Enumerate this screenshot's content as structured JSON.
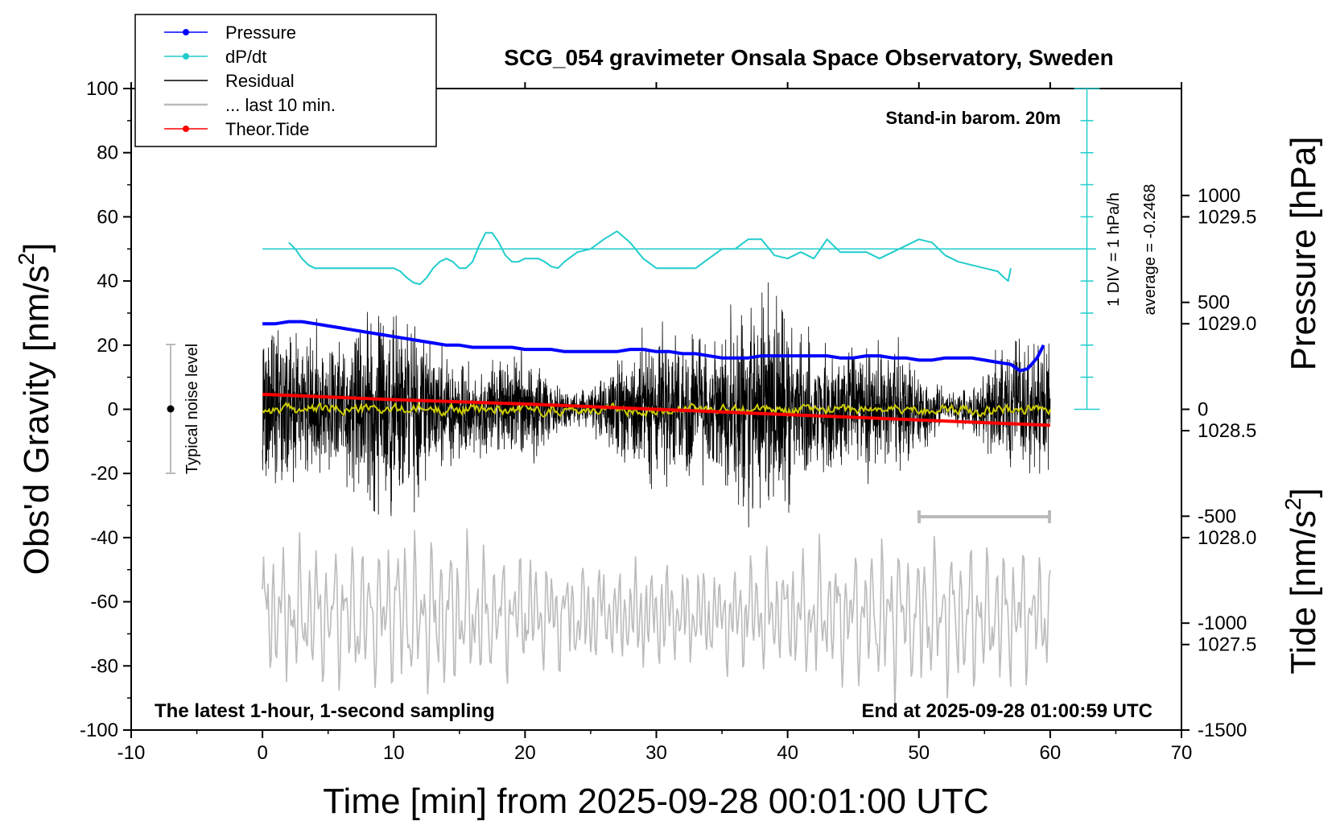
{
  "chart_data": {
    "type": "line",
    "title": "SCG_054 gravimeter Onsala Space Observatory, Sweden",
    "xlabel": "Time [min] from 2025-09-28 00:01:00 UTC",
    "ylabel_left_main": "Obs'd Gravity [nm/s",
    "ylabel_left_sup": "2",
    "ylabel_left_end": "]",
    "ylabel_right_pressure": "Pressure [hPa]",
    "ylabel_right_tide_main": "Tide [nm/s",
    "ylabel_right_tide_sup": "2",
    "ylabel_right_tide_end": "]",
    "xlim": [
      -10,
      70
    ],
    "ylim_left": [
      -100,
      100
    ],
    "ylim_pressure": [
      1027.1,
      1030.1
    ],
    "ylim_tide": [
      -1500,
      1500
    ],
    "x_ticks": [
      "-10",
      "0",
      "10",
      "20",
      "30",
      "40",
      "50",
      "60",
      "70"
    ],
    "y_ticks_left": [
      "100",
      "80",
      "60",
      "40",
      "20",
      "0",
      "-20",
      "-40",
      "-60",
      "-80",
      "-100"
    ],
    "y_ticks_pressure": [
      "1029.5",
      "1029.0",
      "1028.5",
      "1028.0",
      "1027.5"
    ],
    "y_ticks_tide": [
      "1000",
      "500",
      "0",
      "-500",
      "-1000",
      "-1500"
    ],
    "legend": {
      "placement": "top-left",
      "entries": [
        {
          "label": "Pressure",
          "color": "#0000ff"
        },
        {
          "label": "dP/dt",
          "color": "#22cccc"
        },
        {
          "label": "Residual",
          "color": "#000000"
        },
        {
          "label": "... last 10 min.",
          "color": "#bbbbbb"
        },
        {
          "label": "Theor.Tide",
          "color": "#ff0000"
        }
      ]
    },
    "annotations": {
      "top_right": "Stand-in barom. 20m",
      "bottom_left": "The latest 1-hour, 1-second sampling",
      "bottom_right": "End at 2025-09-28 01:00:59 UTC",
      "noise_label": "Typical noise level",
      "dpdt_scale": "1 DIV = 1 hPa/h",
      "dpdt_average": "average = -0.2468"
    },
    "series": [
      {
        "name": "Pressure",
        "axis": "pressure",
        "color": "#0000ff",
        "x": [
          0,
          1,
          2,
          3,
          4,
          5,
          6,
          7,
          8,
          9,
          10,
          11,
          12,
          13,
          14,
          15,
          16,
          17,
          18,
          19,
          20,
          21,
          22,
          23,
          24,
          25,
          26,
          27,
          28,
          29,
          30,
          31,
          32,
          33,
          34,
          35,
          36,
          37,
          38,
          39,
          40,
          41,
          42,
          43,
          44,
          45,
          46,
          47,
          48,
          49,
          50,
          51,
          52,
          53,
          54,
          55,
          56,
          57,
          57.7,
          58.3,
          59,
          59.5
        ],
        "y": [
          1029.0,
          1029.0,
          1029.01,
          1029.01,
          1029.0,
          1028.99,
          1028.98,
          1028.97,
          1028.96,
          1028.95,
          1028.94,
          1028.93,
          1028.92,
          1028.91,
          1028.9,
          1028.9,
          1028.89,
          1028.89,
          1028.89,
          1028.89,
          1028.88,
          1028.88,
          1028.88,
          1028.87,
          1028.87,
          1028.87,
          1028.87,
          1028.87,
          1028.88,
          1028.88,
          1028.87,
          1028.87,
          1028.86,
          1028.86,
          1028.85,
          1028.84,
          1028.84,
          1028.84,
          1028.85,
          1028.85,
          1028.85,
          1028.85,
          1028.85,
          1028.85,
          1028.84,
          1028.84,
          1028.85,
          1028.85,
          1028.84,
          1028.84,
          1028.83,
          1028.83,
          1028.84,
          1028.84,
          1028.84,
          1028.83,
          1028.82,
          1028.81,
          1028.78,
          1028.79,
          1028.84,
          1028.9
        ]
      },
      {
        "name": "dP/dt",
        "axis": "left",
        "color": "#22cccc",
        "zero_level": 50,
        "x": [
          2,
          2.5,
          3,
          3.5,
          4,
          5,
          6,
          7,
          8,
          9,
          10,
          10.5,
          11,
          11.5,
          12,
          12.5,
          13,
          13.5,
          14,
          14.5,
          15,
          15.5,
          16,
          16.5,
          17,
          17.5,
          18,
          18.5,
          19,
          19.5,
          20,
          20.5,
          21,
          21.5,
          22,
          22.5,
          23,
          24,
          25,
          26,
          27,
          28,
          29,
          30,
          31,
          32,
          33,
          34,
          35,
          36,
          37,
          38,
          39,
          40,
          41,
          42,
          43,
          44,
          45,
          46,
          47,
          48,
          49,
          50,
          51,
          52,
          53,
          54,
          55,
          56,
          56.5,
          56.8,
          57
        ],
        "y": [
          52,
          50,
          47,
          45,
          44,
          44,
          44,
          44,
          44,
          44,
          44,
          43,
          41,
          39.5,
          39,
          41,
          44,
          46,
          47,
          46,
          44,
          44,
          46,
          51,
          55,
          55,
          52,
          48,
          46,
          46,
          47,
          47,
          47,
          46,
          44.5,
          44,
          46,
          49,
          50,
          53,
          55.5,
          52,
          47,
          44,
          44,
          44,
          44,
          47,
          50,
          50,
          53,
          53,
          48,
          47,
          49,
          47,
          53,
          49,
          49,
          49,
          47,
          49,
          51,
          53,
          52,
          48,
          46,
          45,
          44,
          43,
          41,
          40,
          44
        ]
      },
      {
        "name": "Residual",
        "axis": "left",
        "color": "#000000",
        "x_range": [
          0,
          60
        ],
        "approx_amplitude": 20,
        "min": -43,
        "max": 40
      },
      {
        "name": "... last 10 min.",
        "axis": "left",
        "color": "#bbbbbb",
        "x_range": [
          0,
          60
        ],
        "center": -64,
        "approx_amplitude": 25,
        "min": -100,
        "max": -27
      },
      {
        "name": "Theor.Tide",
        "axis": "tide",
        "color": "#ff0000",
        "x": [
          0,
          10,
          20,
          30,
          40,
          50,
          60
        ],
        "y": [
          70,
          45,
          25,
          0,
          -25,
          -50,
          -75
        ]
      },
      {
        "name": "",
        "axis": "left",
        "color": "#cccc00",
        "x_range": [
          0,
          60
        ],
        "approx_amplitude": 1.5
      }
    ]
  }
}
